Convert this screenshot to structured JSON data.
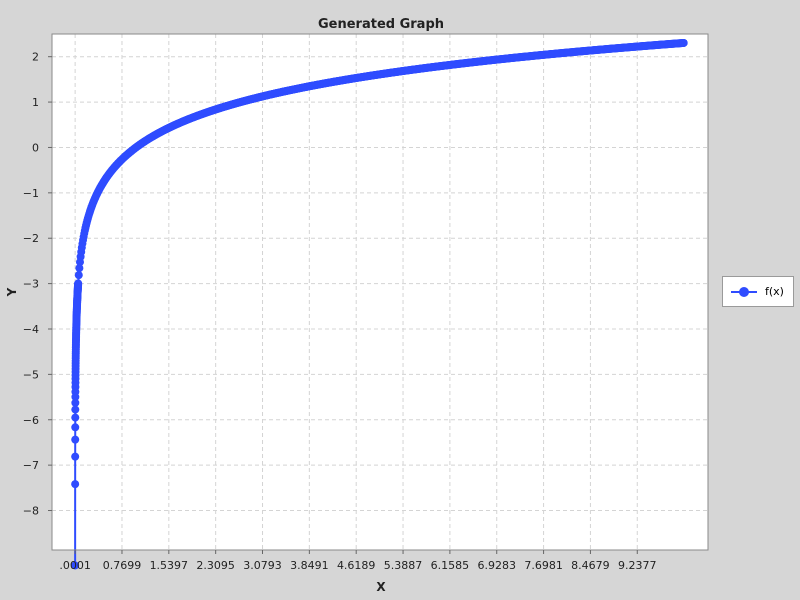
{
  "chart_data": {
    "type": "line",
    "title": "Generated Graph",
    "xlabel": "X",
    "ylabel": "Y",
    "x_ticks": [
      ".0001",
      "0.7699",
      "1.5397",
      "2.3095",
      "3.0793",
      "3.8491",
      "4.6189",
      "5.3887",
      "6.1585",
      "6.9283",
      "7.6981",
      "8.4679",
      "9.2377"
    ],
    "y_ticks": [
      "2",
      "1",
      "0",
      "−1",
      "−2",
      "−3",
      "−4",
      "−5",
      "−6",
      "−7",
      "−8"
    ],
    "xlim": [
      -0.38,
      10.4
    ],
    "ylim": [
      -8.87,
      2.5
    ],
    "grid": true,
    "legend_position": "right",
    "series": [
      {
        "name": "f(x)",
        "color": "#2f4cff",
        "function": "ln",
        "x_start": 0.0001,
        "x_end": 10.0,
        "marker": "circle"
      }
    ]
  }
}
